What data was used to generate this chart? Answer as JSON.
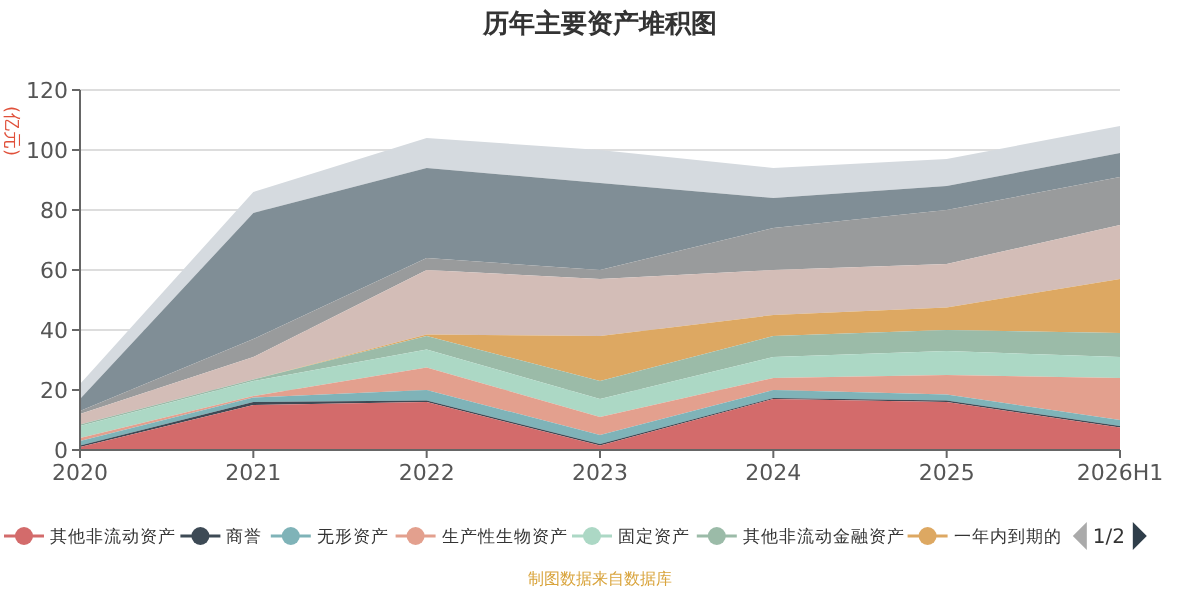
{
  "chart_data": {
    "type": "area",
    "stacked": true,
    "title": "历年主要资产堆积图",
    "ylabel": "(亿元)",
    "categories": [
      "2020",
      "2021",
      "2022",
      "2023",
      "2024",
      "2025",
      "2026H1"
    ],
    "ylim": [
      0,
      120
    ],
    "yticks": [
      0,
      20,
      40,
      60,
      80,
      100,
      120
    ],
    "grid": "y",
    "legend": "bottom",
    "annotations": [
      "1/2",
      "制图数据来自数据库"
    ],
    "series": [
      {
        "name": "其他非流动资产",
        "color": "#d36b6b",
        "values": [
          1,
          15,
          16,
          1.5,
          17,
          16,
          7.5
        ]
      },
      {
        "name": "商誉",
        "color": "#3d4a55",
        "values": [
          0.5,
          1,
          0.5,
          0.5,
          0.3,
          0.5,
          0.5
        ]
      },
      {
        "name": "无形资产",
        "color": "#7fb3b8",
        "values": [
          1.5,
          1.5,
          3.5,
          3,
          2.7,
          2,
          2
        ]
      },
      {
        "name": "生产性生物资产",
        "color": "#e3a08e",
        "values": [
          1,
          0.5,
          7.5,
          6,
          4,
          6.5,
          14
        ]
      },
      {
        "name": "固定资产",
        "color": "#acd8c5",
        "values": [
          4,
          5,
          6,
          6,
          7,
          8,
          7
        ]
      },
      {
        "name": "其他非流动金融资产",
        "color": "#9bbba8",
        "values": [
          0.5,
          0.5,
          4.5,
          6,
          7,
          7,
          8
        ]
      },
      {
        "name": "一年内到期的",
        "color": "#dda862",
        "values": [
          0,
          0,
          0.5,
          15,
          7,
          7.5,
          18
        ]
      },
      {
        "color": "#d3bdb7",
        "values": [
          3.5,
          7.5,
          21.5,
          19,
          15,
          14.5,
          18
        ]
      },
      {
        "color": "#999b9c",
        "values": [
          1,
          6,
          4,
          3,
          14,
          18,
          16
        ]
      },
      {
        "color": "#808e96",
        "values": [
          4,
          42,
          30,
          29,
          10,
          8,
          8
        ]
      },
      {
        "color": "#d5dadf",
        "values": [
          5,
          7,
          10,
          11,
          10,
          9,
          9
        ]
      }
    ]
  }
}
